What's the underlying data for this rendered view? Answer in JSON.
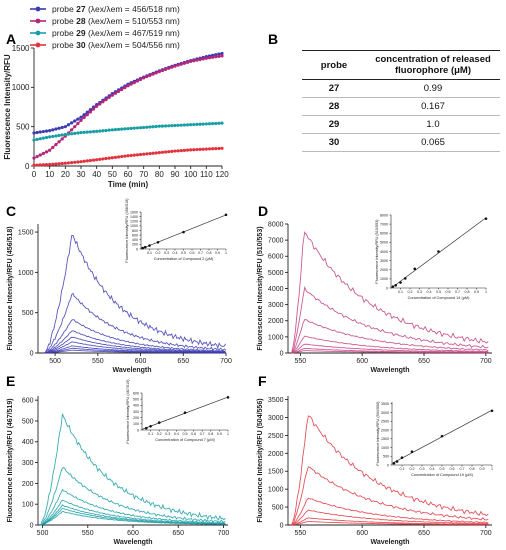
{
  "panel_letters": [
    "A",
    "B",
    "C",
    "D",
    "E",
    "F"
  ],
  "legend": [
    {
      "probe": "27",
      "wavelengths": "456/518 nm",
      "color": "#3b3bb3"
    },
    {
      "probe": "28",
      "wavelengths": "510/553 nm",
      "color": "#b3267a"
    },
    {
      "probe": "29",
      "wavelengths": "467/519 nm",
      "color": "#1a9ea6"
    },
    {
      "probe": "30",
      "wavelengths": "504/556 nm",
      "color": "#e0353f"
    }
  ],
  "legend_probe_word": "probe",
  "legend_lambda": "(λex/λem = ",
  "table": {
    "headers": [
      "probe",
      "concentration of released fluorophore (μM)"
    ],
    "rows": [
      [
        "27",
        "0.99"
      ],
      [
        "28",
        "0.167"
      ],
      [
        "29",
        "1.0"
      ],
      [
        "30",
        "0.065"
      ]
    ]
  },
  "chart_data": [
    {
      "panel": "A",
      "type": "line",
      "xlabel": "Time (min)",
      "ylabel": "Fluorescence Intensity/RFU",
      "xlim": [
        0,
        120
      ],
      "ylim": [
        0,
        1500
      ],
      "xticks": [
        0,
        10,
        20,
        30,
        40,
        50,
        60,
        70,
        80,
        90,
        100,
        110,
        120
      ],
      "yticks": [
        0,
        500,
        1000,
        1500
      ],
      "series": [
        {
          "name": "probe 27",
          "color": "#3b3bb3",
          "x": [
            0,
            10,
            20,
            30,
            40,
            50,
            60,
            70,
            80,
            90,
            100,
            110,
            120
          ],
          "y": [
            420,
            450,
            500,
            620,
            780,
            920,
            1040,
            1130,
            1210,
            1280,
            1340,
            1390,
            1430
          ]
        },
        {
          "name": "probe 28",
          "color": "#b3267a",
          "x": [
            0,
            10,
            20,
            30,
            40,
            50,
            60,
            70,
            80,
            90,
            100,
            110,
            120
          ],
          "y": [
            100,
            200,
            380,
            580,
            760,
            900,
            1020,
            1120,
            1200,
            1270,
            1330,
            1370,
            1400
          ]
        },
        {
          "name": "probe 29",
          "color": "#1a9ea6",
          "x": [
            0,
            10,
            20,
            30,
            40,
            50,
            60,
            70,
            80,
            90,
            100,
            110,
            120
          ],
          "y": [
            330,
            370,
            400,
            425,
            440,
            460,
            475,
            490,
            505,
            515,
            525,
            535,
            545
          ]
        },
        {
          "name": "probe 30",
          "color": "#e0353f",
          "x": [
            0,
            10,
            20,
            30,
            40,
            50,
            60,
            70,
            80,
            90,
            100,
            110,
            120
          ],
          "y": [
            10,
            20,
            35,
            55,
            80,
            105,
            130,
            150,
            170,
            190,
            205,
            215,
            225
          ]
        }
      ]
    },
    {
      "panel": "C",
      "type": "line",
      "xlabel": "Wavelength",
      "ylabel": "Fluorescence Intensity/RFU (456/518)",
      "xlim": [
        480,
        700
      ],
      "ylim": [
        0,
        1600
      ],
      "xticks": [
        500,
        550,
        600,
        650,
        700
      ],
      "yticks": [
        0,
        500,
        1000,
        1500
      ],
      "color": "#3b3bb3",
      "peak_x": 520,
      "spectrum_x_range": [
        488,
        700
      ],
      "peaks": [
        1480,
        740,
        420,
        280,
        200,
        140,
        90,
        60,
        35
      ],
      "inset": {
        "xlabel": "Concentration of Compound 2 (μM)",
        "ylabel": "Fluorescence Intensity/RFU (456/518)",
        "xlim": [
          0,
          1.0
        ],
        "ylim": [
          0,
          1600
        ],
        "xticks": [
          0.1,
          0.2,
          0.3,
          0.4,
          0.5,
          0.6,
          0.7,
          0.8,
          0.9,
          1.0
        ],
        "yticks": [
          0,
          200,
          400,
          600,
          800,
          1000,
          1200,
          1400,
          1600
        ],
        "x": [
          0.02,
          0.05,
          0.1,
          0.2,
          0.5,
          1.0
        ],
        "y": [
          40,
          80,
          150,
          290,
          730,
          1480
        ]
      }
    },
    {
      "panel": "D",
      "type": "line",
      "xlabel": "Wavelength",
      "ylabel": "Fluorescence Intensity/RFU (510/553)",
      "xlim": [
        540,
        705
      ],
      "ylim": [
        0,
        8000
      ],
      "xticks": [
        550,
        600,
        650,
        700
      ],
      "yticks": [
        0,
        1000,
        2000,
        3000,
        4000,
        5000,
        6000,
        7000,
        8000
      ],
      "color": "#c2407f",
      "peak_x": 553,
      "spectrum_x_range": [
        543,
        702
      ],
      "peaks": [
        7600,
        4000,
        2100,
        1050,
        560,
        290,
        150
      ],
      "inset": {
        "xlabel": "Concentration of Compound 14 (μM)",
        "ylabel": "Fluorescence Intensity/RFU (510/553)",
        "xlim": [
          0,
          1.0
        ],
        "ylim": [
          0,
          8000
        ],
        "xticks": [
          0.1,
          0.2,
          0.3,
          0.4,
          0.5,
          0.6,
          0.7,
          0.8,
          0.9,
          1.0
        ],
        "yticks": [
          0,
          1000,
          2000,
          3000,
          4000,
          5000,
          6000,
          7000,
          8000
        ],
        "x": [
          0.02,
          0.05,
          0.1,
          0.15,
          0.25,
          0.5,
          1.0
        ],
        "y": [
          150,
          300,
          600,
          1050,
          2100,
          4000,
          7600
        ]
      }
    },
    {
      "panel": "E",
      "type": "line",
      "xlabel": "Wavelength",
      "ylabel": "Fluorescence Intensity/RFU (467/519)",
      "xlim": [
        495,
        705
      ],
      "ylim": [
        0,
        620
      ],
      "xticks": [
        500,
        550,
        600,
        650,
        700
      ],
      "yticks": [
        0,
        100,
        200,
        300,
        400,
        500,
        600
      ],
      "color": "#1a9ea6",
      "peak_x": 522,
      "spectrum_x_range": [
        498,
        702
      ],
      "peaks": [
        530,
        280,
        170,
        120,
        95,
        80,
        65
      ],
      "inset": {
        "xlabel": "Concentration of Compound 7 (μM)",
        "ylabel": "Fluorescence Intensity/RFU (467/519)",
        "xlim": [
          0,
          1.0
        ],
        "ylim": [
          0,
          600
        ],
        "xticks": [
          0.1,
          0.2,
          0.3,
          0.4,
          0.5,
          0.6,
          0.7,
          0.8,
          0.9,
          1.0
        ],
        "yticks": [
          0,
          100,
          200,
          300,
          400,
          500,
          600
        ],
        "x": [
          0.05,
          0.1,
          0.2,
          0.5,
          1.0
        ],
        "y": [
          30,
          60,
          120,
          280,
          530
        ]
      }
    },
    {
      "panel": "F",
      "type": "line",
      "xlabel": "Wavelength",
      "ylabel": "Fluorescence Intensity/RFU (504/556)",
      "xlim": [
        540,
        705
      ],
      "ylim": [
        0,
        3600
      ],
      "xticks": [
        550,
        600,
        650,
        700
      ],
      "yticks": [
        0,
        500,
        1000,
        1500,
        2000,
        2500,
        3000,
        3500
      ],
      "color": "#e0353f",
      "peak_x": 556,
      "spectrum_x_range": [
        543,
        702
      ],
      "peaks": [
        3100,
        1650,
        760,
        420,
        200,
        100
      ],
      "inset": {
        "xlabel": "Concentration of Compound 19 (μM)",
        "ylabel": "Fluorescence Intensity/RFU (504/556)",
        "xlim": [
          0,
          1.0
        ],
        "ylim": [
          0,
          3600
        ],
        "xticks": [
          0.1,
          0.2,
          0.3,
          0.4,
          0.5,
          0.6,
          0.7,
          0.8,
          0.9,
          1.0
        ],
        "yticks": [
          0,
          500,
          1000,
          1500,
          2000,
          2500,
          3000,
          3500
        ],
        "x": [
          0.02,
          0.05,
          0.1,
          0.2,
          0.5,
          1.0
        ],
        "y": [
          100,
          200,
          420,
          760,
          1650,
          3100
        ]
      }
    }
  ]
}
